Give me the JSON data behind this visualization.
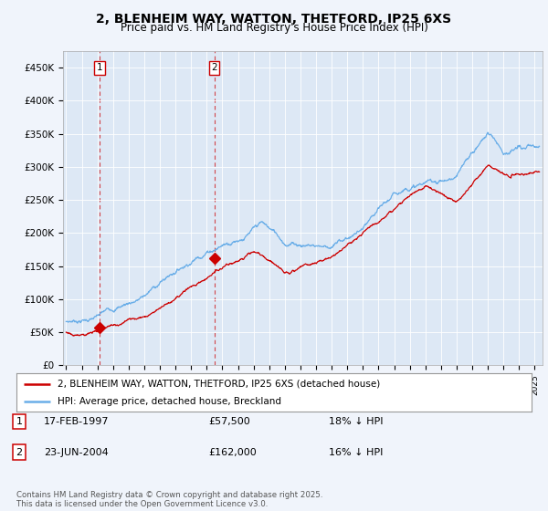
{
  "title": "2, BLENHEIM WAY, WATTON, THETFORD, IP25 6XS",
  "subtitle": "Price paid vs. HM Land Registry's House Price Index (HPI)",
  "background_color": "#f0f4fb",
  "plot_bg_color": "#dde8f5",
  "ylim": [
    0,
    475000
  ],
  "yticks": [
    0,
    50000,
    100000,
    150000,
    200000,
    250000,
    300000,
    350000,
    400000,
    450000
  ],
  "ytick_labels": [
    "£0",
    "£50K",
    "£100K",
    "£150K",
    "£200K",
    "£250K",
    "£300K",
    "£350K",
    "£400K",
    "£450K"
  ],
  "legend_line1": "2, BLENHEIM WAY, WATTON, THETFORD, IP25 6XS (detached house)",
  "legend_line2": "HPI: Average price, detached house, Breckland",
  "sale1_label": "1",
  "sale1_date": "17-FEB-1997",
  "sale1_price": "£57,500",
  "sale1_hpi": "18% ↓ HPI",
  "sale1_year": 1997.13,
  "sale1_value": 57500,
  "sale2_label": "2",
  "sale2_date": "23-JUN-2004",
  "sale2_price": "£162,000",
  "sale2_hpi": "16% ↓ HPI",
  "sale2_year": 2004.48,
  "sale2_value": 162000,
  "red_line_color": "#cc0000",
  "blue_line_color": "#6aaee8",
  "marker_color": "#cc0000",
  "vline_color": "#cc0000",
  "footer": "Contains HM Land Registry data © Crown copyright and database right 2025.\nThis data is licensed under the Open Government Licence v3.0.",
  "title_fontsize": 10,
  "subtitle_fontsize": 8.5
}
